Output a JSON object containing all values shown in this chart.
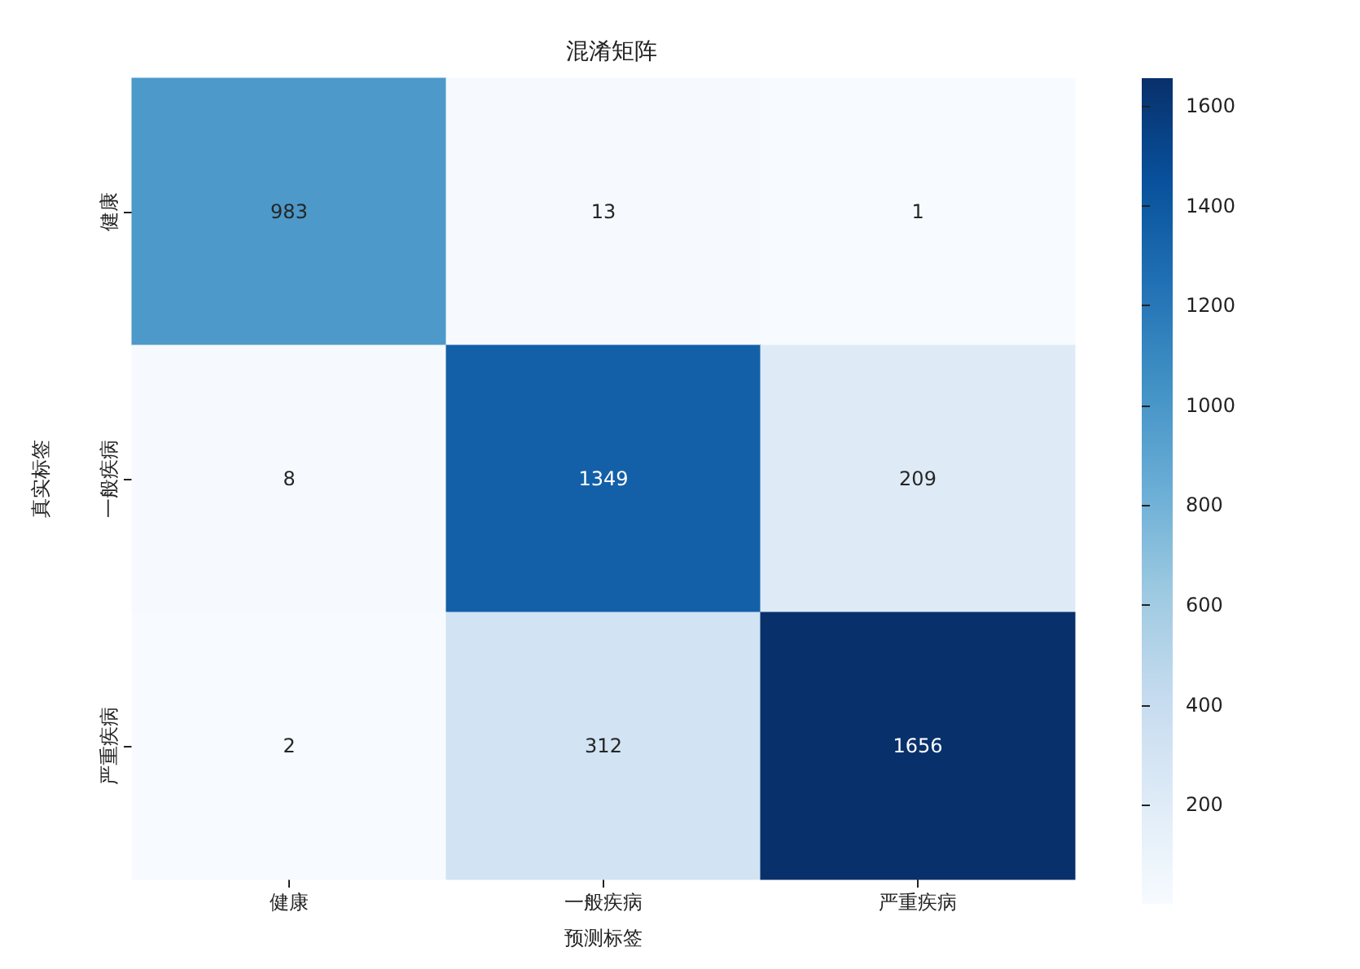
{
  "chart_data": {
    "type": "heatmap",
    "title": "混淆矩阵",
    "xlabel": "预测标签",
    "ylabel": "真实标签",
    "categories": [
      "健康",
      "一般疾病",
      "严重疾病"
    ],
    "y_categories": [
      "健康",
      "一般疾病",
      "严重疾病"
    ],
    "cells": [
      [
        983,
        13,
        1
      ],
      [
        8,
        1349,
        209
      ],
      [
        2,
        312,
        1656
      ]
    ],
    "clim": [
      1,
      1656
    ],
    "cticks": [
      200,
      400,
      600,
      800,
      1000,
      1200,
      1400,
      1600
    ],
    "data_labels": true
  }
}
